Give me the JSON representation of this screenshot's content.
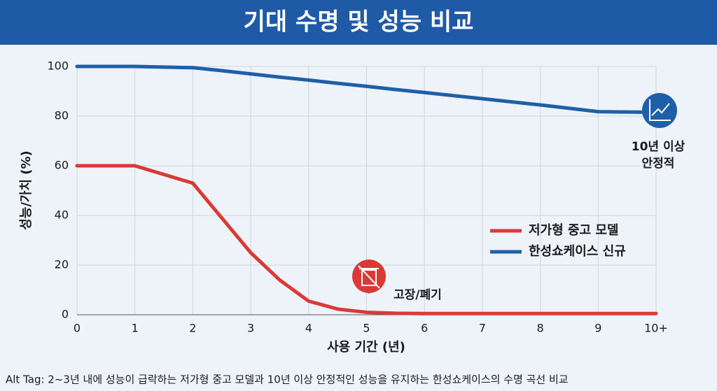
{
  "chart_data": {
    "type": "line",
    "title": "기대 수명 및 성능 비교",
    "x_label": "사용 기간 (년)",
    "y_label": "성능/가치 (%)",
    "x": [
      0,
      1,
      2,
      2.5,
      3,
      3.5,
      4,
      4.5,
      5,
      5.5,
      6,
      7,
      8,
      9,
      10
    ],
    "series": [
      {
        "name": "저가형 중고 모델",
        "color": "#d93a36",
        "values": [
          60,
          60,
          53,
          39,
          25,
          14,
          5.5,
          2.3,
          1,
          0.6,
          0.5,
          0.5,
          0.5,
          0.5,
          0.5
        ]
      },
      {
        "name": "한성쇼케이스 신규",
        "color": "#1f5fa8",
        "values": [
          100,
          100,
          99.5,
          98.3,
          97,
          95.7,
          94.5,
          93.2,
          92,
          90.7,
          89.5,
          87,
          84.5,
          81.8,
          81.5
        ]
      }
    ],
    "xlim": [
      0,
      10
    ],
    "xticks": [
      0,
      1,
      2,
      3,
      4,
      5,
      6,
      7,
      8,
      9,
      {
        "value": 10,
        "label": "10+"
      }
    ],
    "ylim": [
      0,
      100
    ],
    "yticks": [
      0,
      20,
      40,
      60,
      80,
      100
    ],
    "grid": true,
    "legend": "right",
    "annotations": [
      {
        "lines": [
          "고장/폐기"
        ]
      },
      {
        "lines": [
          "10년 이상",
          "안정적"
        ]
      }
    ],
    "alt_tag": "Alt Tag: 2~3년 내에 성능이 급락하는 저가형 중고 모델과 10년 이상 안정적인 성능을 유지하는 한성쇼케이스의 수명 곡선 비교"
  }
}
